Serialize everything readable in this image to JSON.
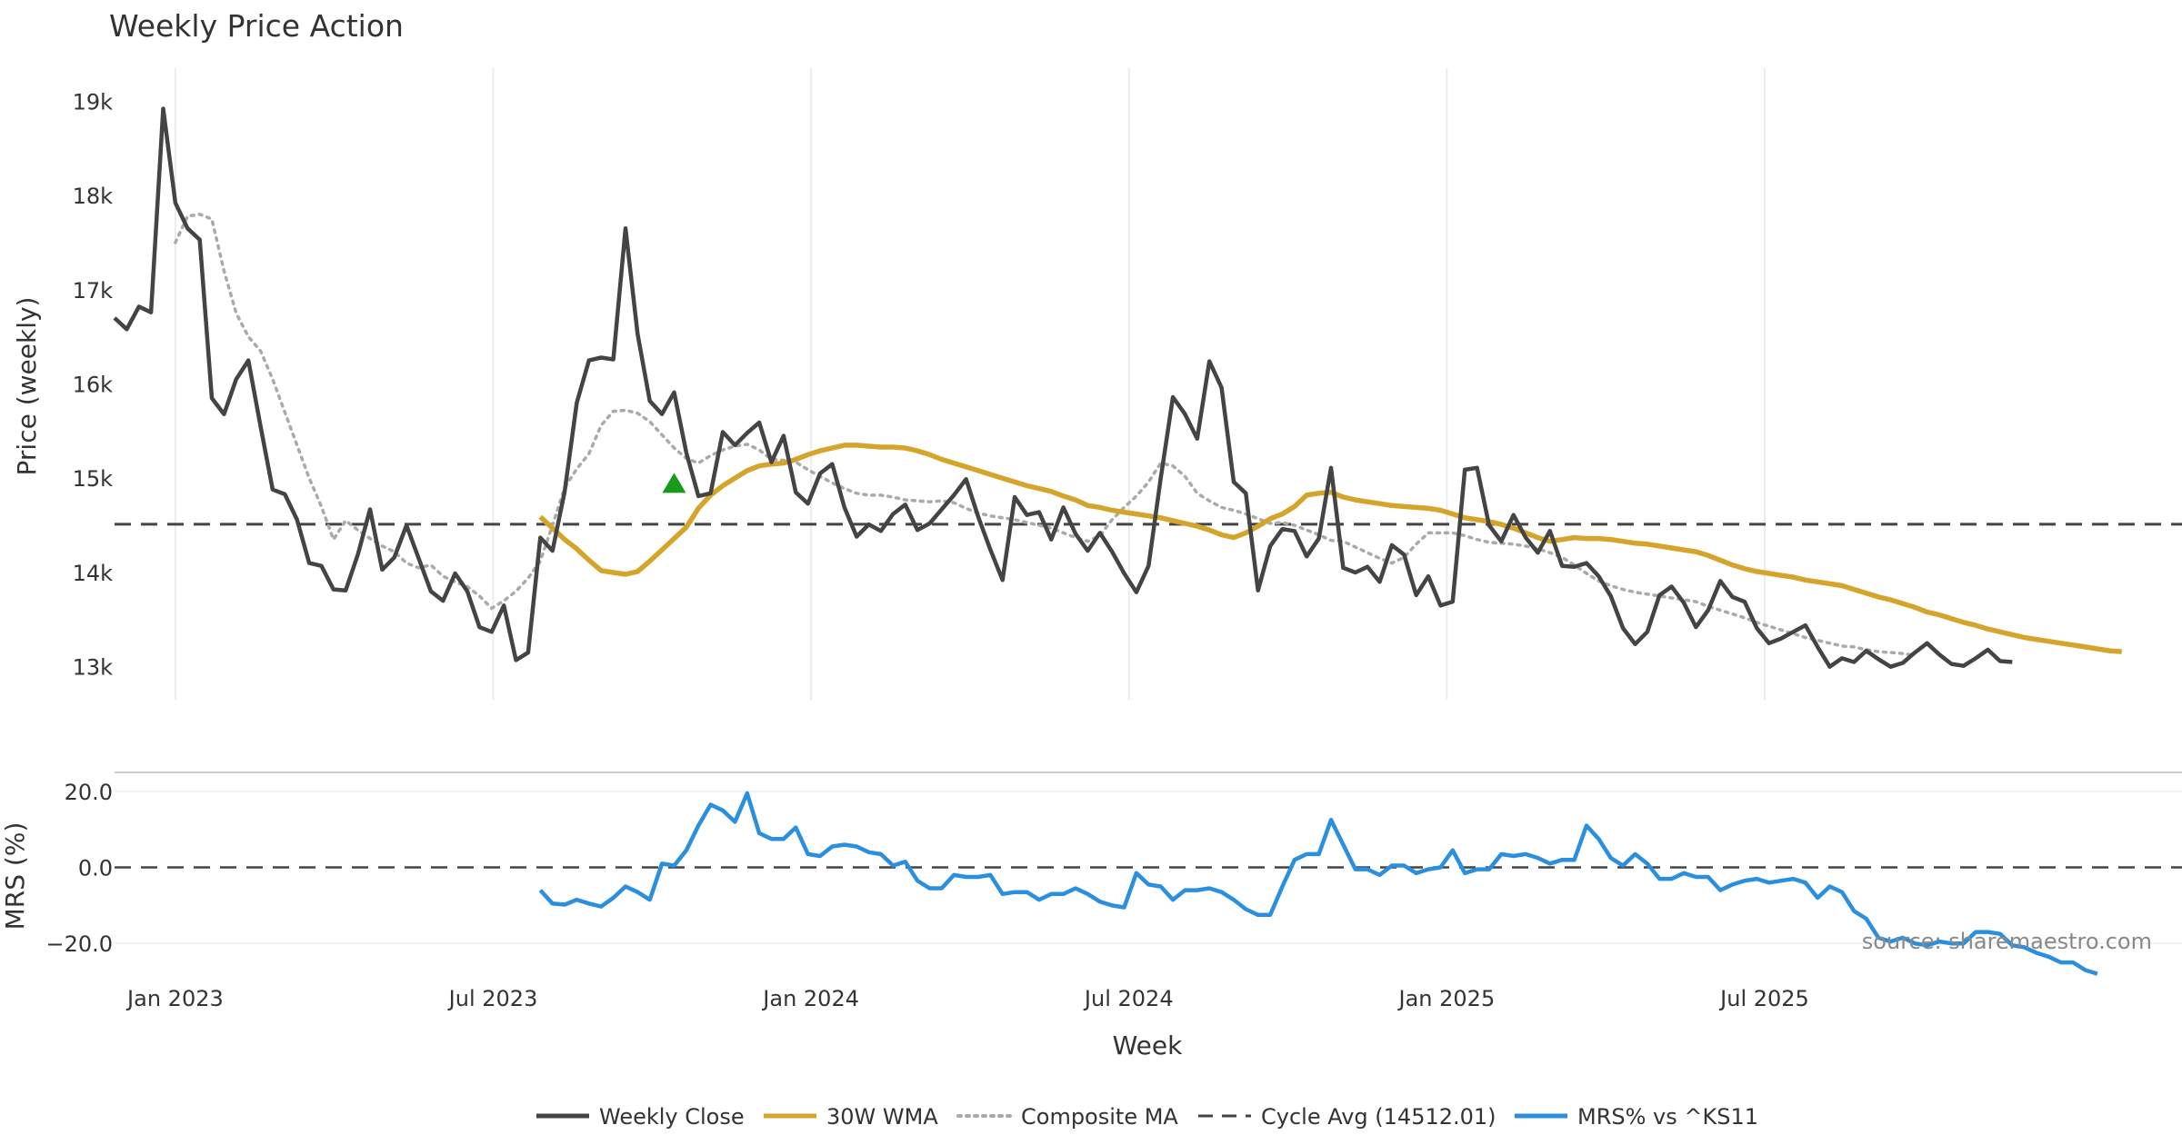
{
  "chart_data": {
    "title": "Weekly Price Action",
    "source": "source: sharemaestro.com",
    "xlabel": "Week",
    "x_ticks": [
      "Jan 2023",
      "Jul 2023",
      "Jan 2024",
      "Jul 2024",
      "Jan 2025",
      "Jul 2025"
    ],
    "price_panel": {
      "type": "line",
      "ylabel": "Price (weekly)",
      "ylim": [
        12650,
        19350
      ],
      "y_ticks": [
        13000,
        14000,
        15000,
        16000,
        17000,
        18000,
        19000
      ],
      "y_tick_labels": [
        "13k",
        "14k",
        "15k",
        "16k",
        "17k",
        "18k",
        "19k"
      ],
      "cycle_avg": 14512.01,
      "weekly_close": [
        16700,
        16580,
        16820,
        16760,
        18920,
        17920,
        17650,
        17530,
        15850,
        15680,
        16050,
        16250,
        15550,
        14880,
        14830,
        14560,
        14100,
        14070,
        13820,
        13810,
        14190,
        14670,
        14030,
        14160,
        14500,
        14150,
        13800,
        13700,
        13990,
        13800,
        13420,
        13370,
        13650,
        13070,
        13150,
        14370,
        14230,
        14860,
        15800,
        16250,
        16280,
        16260,
        17650,
        16530,
        15820,
        15680,
        15910,
        15270,
        14810,
        14840,
        15490,
        15350,
        15480,
        15590,
        15170,
        15450,
        14850,
        14730,
        15050,
        15150,
        14690,
        14380,
        14510,
        14440,
        14620,
        14720,
        14450,
        14520,
        14670,
        14820,
        14990,
        14590,
        14240,
        13920,
        14800,
        14610,
        14640,
        14350,
        14690,
        14410,
        14230,
        14420,
        14220,
        13990,
        13790,
        14070,
        15000,
        15860,
        15680,
        15420,
        16240,
        15960,
        14960,
        14840,
        13810,
        14280,
        14460,
        14440,
        14170,
        14360,
        15110,
        14050,
        14000,
        14060,
        13900,
        14290,
        14190,
        13760,
        13960,
        13650,
        13690,
        15090,
        15110,
        14500,
        14330,
        14610,
        14370,
        14210,
        14440,
        14070,
        14060,
        14100,
        13960,
        13750,
        13410,
        13240,
        13370,
        13760,
        13850,
        13680,
        13420,
        13600,
        13910,
        13740,
        13690,
        13410,
        13250,
        13300,
        13370,
        13440,
        13210,
        13000,
        13090,
        13050,
        13170,
        13080,
        13000,
        13040,
        13150,
        13250,
        13130,
        13030,
        13010,
        13090,
        13180,
        13060,
        13050
      ],
      "wma_30w": [
        14590,
        14470,
        14350,
        14250,
        14130,
        14020,
        14000,
        13980,
        14010,
        14120,
        14240,
        14360,
        14480,
        14680,
        14820,
        14920,
        15000,
        15080,
        15130,
        15150,
        15160,
        15200,
        15250,
        15290,
        15320,
        15350,
        15350,
        15340,
        15330,
        15330,
        15320,
        15290,
        15250,
        15200,
        15160,
        15120,
        15080,
        15040,
        15000,
        14960,
        14920,
        14890,
        14860,
        14810,
        14770,
        14710,
        14690,
        14660,
        14640,
        14620,
        14600,
        14580,
        14550,
        14520,
        14490,
        14450,
        14400,
        14370,
        14420,
        14490,
        14570,
        14620,
        14700,
        14820,
        14840,
        14850,
        14800,
        14770,
        14750,
        14730,
        14710,
        14700,
        14690,
        14680,
        14660,
        14620,
        14580,
        14560,
        14540,
        14510,
        14470,
        14420,
        14370,
        14330,
        14350,
        14370,
        14360,
        14360,
        14350,
        14330,
        14310,
        14300,
        14280,
        14260,
        14240,
        14220,
        14180,
        14130,
        14080,
        14040,
        14010,
        13990,
        13970,
        13950,
        13920,
        13900,
        13880,
        13860,
        13820,
        13780,
        13740,
        13710,
        13670,
        13630,
        13580,
        13550,
        13510,
        13470,
        13440,
        13400,
        13370,
        13340,
        13310,
        13290,
        13270,
        13250,
        13230,
        13210,
        13190,
        13170,
        13160
      ],
      "composite_ma": [
        17500,
        17780,
        17800,
        17750,
        17200,
        16750,
        16500,
        16350,
        16050,
        15700,
        15350,
        15000,
        14700,
        14350,
        14550,
        14450,
        14360,
        14280,
        14220,
        14100,
        14050,
        14080,
        13960,
        13900,
        13850,
        13750,
        13620,
        13700,
        13800,
        13940,
        14120,
        14500,
        14900,
        15100,
        15260,
        15560,
        15710,
        15720,
        15690,
        15600,
        15460,
        15320,
        15210,
        15160,
        15240,
        15300,
        15340,
        15360,
        15300,
        15200,
        15190,
        15170,
        15090,
        15020,
        14950,
        14890,
        14840,
        14820,
        14820,
        14800,
        14770,
        14760,
        14750,
        14760,
        14740,
        14680,
        14630,
        14600,
        14580,
        14560,
        14530,
        14500,
        14470,
        14420,
        14370,
        14330,
        14390,
        14560,
        14690,
        14810,
        14960,
        15160,
        15130,
        15020,
        14840,
        14760,
        14690,
        14660,
        14620,
        14570,
        14520,
        14530,
        14500,
        14450,
        14400,
        14340,
        14330,
        14270,
        14210,
        14150,
        14100,
        14160,
        14300,
        14420,
        14420,
        14420,
        14390,
        14350,
        14320,
        14310,
        14300,
        14280,
        14250,
        14210,
        14160,
        14080,
        13990,
        13910,
        13860,
        13820,
        13790,
        13770,
        13750,
        13730,
        13710,
        13690,
        13640,
        13600,
        13560,
        13520,
        13470,
        13430,
        13390,
        13350,
        13310,
        13280,
        13250,
        13220,
        13210,
        13180,
        13160,
        13150,
        13140,
        13120
      ]
    },
    "mrs_panel": {
      "type": "line",
      "ylabel": "MRS (%)",
      "ylim": [
        -30,
        25
      ],
      "y_ticks": [
        20,
        0,
        -20
      ],
      "y_tick_labels": [
        "20.0",
        "0.0",
        "−20.0"
      ],
      "zero_line": 0,
      "mrs_vs_ks11": [
        -6,
        -9.5,
        -9.8,
        -8.5,
        -9.5,
        -10.3,
        -8,
        -5,
        -6.5,
        -8.5,
        1,
        0.5,
        4.5,
        11,
        16.5,
        15,
        12,
        19.5,
        9,
        7.5,
        7.5,
        10.5,
        3.5,
        3,
        5.5,
        6,
        5.5,
        4,
        3.5,
        0.5,
        1.5,
        -3.5,
        -5.5,
        -5.5,
        -2,
        -2.5,
        -2.5,
        -2,
        -7,
        -6.5,
        -6.5,
        -8.5,
        -7,
        -7,
        -5.5,
        -7,
        -9,
        -10,
        -10.5,
        -1.5,
        -4.5,
        -5,
        -8.5,
        -6,
        -6,
        -5.5,
        -6.5,
        -8.5,
        -11,
        -12.5,
        -12.5,
        -5,
        2,
        3.5,
        3.5,
        12.5,
        6,
        -0.5,
        -0.5,
        -2,
        0.5,
        0.5,
        -1.5,
        -0.5,
        0,
        4.5,
        -1.5,
        -0.5,
        -0.5,
        3.5,
        3,
        3.5,
        2.5,
        1,
        2,
        2,
        11,
        7.5,
        2.5,
        0.5,
        3.5,
        1,
        -3,
        -3,
        -1.5,
        -2.5,
        -2.5,
        -6,
        -4.5,
        -3.5,
        -3,
        -4,
        -3.5,
        -3,
        -4,
        -8,
        -5,
        -6.5,
        -11.5,
        -13.5,
        -18.5,
        -19.5,
        -18.5,
        -20,
        -20.5,
        -19.5,
        -20,
        -20,
        -17,
        -17,
        -17.5,
        -20.5,
        -21,
        -22.5,
        -23.5,
        -25,
        -25,
        -27,
        -28
      ]
    },
    "legend": [
      {
        "label": "Weekly Close",
        "color": "#444444",
        "style": "solid"
      },
      {
        "label": "30W WMA",
        "color": "#D4A52A",
        "style": "solid"
      },
      {
        "label": "Composite MA",
        "color": "#AAAAAA",
        "style": "dotted"
      },
      {
        "label": "Cycle Avg (14512.01)",
        "color": "#444444",
        "style": "dashed"
      },
      {
        "label": "MRS% vs ^KS11",
        "color": "#2B8FE0",
        "style": "solid"
      }
    ],
    "markers": [
      {
        "type": "triangle-up",
        "color": "#1A9A1A",
        "week_index": 46,
        "value": 14950
      }
    ]
  }
}
